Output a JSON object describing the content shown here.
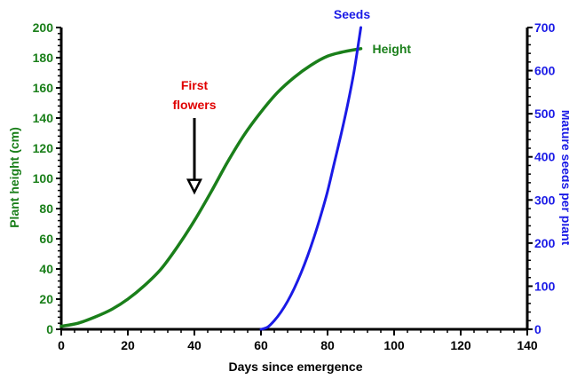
{
  "chart_data": {
    "type": "line",
    "xlabel": "Days since emergence",
    "ylabel_left": "Plant height (cm)",
    "ylabel_right": "Mature seeds per plant",
    "xlim": [
      0,
      140
    ],
    "ylim_left": [
      0,
      200
    ],
    "ylim_right": [
      0,
      700
    ],
    "x_ticks": [
      "0",
      "20",
      "40",
      "60",
      "80",
      "100",
      "120",
      "140"
    ],
    "y_ticks_left": [
      "0",
      "20",
      "40",
      "60",
      "80",
      "100",
      "120",
      "140",
      "160",
      "180",
      "200"
    ],
    "y_ticks_right": [
      "0",
      "100",
      "200",
      "300",
      "400",
      "500",
      "600",
      "700"
    ],
    "grid": false,
    "colors": {
      "left_axis": "#1a7f1a",
      "right_axis": "#1a1ae6",
      "height": "#1a7f1a",
      "seeds": "#1a1ae6",
      "annotation": "#e00000",
      "frame": "#000000"
    },
    "series": [
      {
        "name": "Height",
        "axis": "left",
        "x": [
          0,
          5,
          10,
          15,
          20,
          25,
          30,
          35,
          40,
          45,
          50,
          55,
          60,
          65,
          70,
          75,
          80,
          85,
          90
        ],
        "values": [
          2,
          4,
          8,
          13,
          20,
          29,
          40,
          55,
          72,
          91,
          111,
          129,
          144,
          157,
          167,
          175,
          181,
          184,
          186
        ]
      },
      {
        "name": "Seeds",
        "axis": "right",
        "x": [
          60,
          62,
          64,
          66,
          68,
          70,
          72,
          74,
          76,
          78,
          80,
          82,
          84,
          86,
          88,
          90
        ],
        "values": [
          0,
          5,
          20,
          40,
          65,
          95,
          130,
          170,
          215,
          265,
          320,
          385,
          450,
          520,
          600,
          700
        ]
      }
    ],
    "annotations": [
      {
        "text_lines": [
          "First",
          "flowers"
        ],
        "x": 40,
        "y_from": 140,
        "y_to": 92,
        "axis": "left"
      }
    ]
  }
}
